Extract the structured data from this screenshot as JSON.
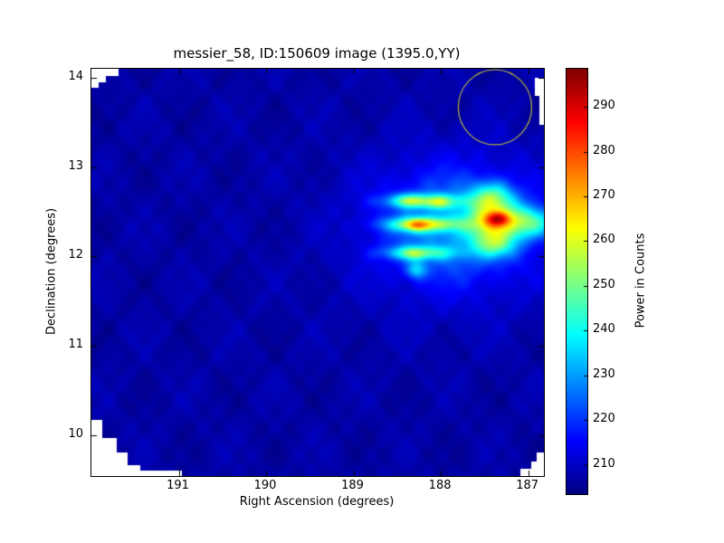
{
  "chart_data": {
    "type": "heatmap",
    "title": "messier_58, ID:150609 image (1395.0,YY)",
    "xlabel": "Right Ascension (degrees)",
    "ylabel": "Declination (degrees)",
    "x_axis": {
      "left_value": 192.0,
      "right_value": 186.82,
      "ticks": [
        191,
        190,
        189,
        188,
        187
      ],
      "inverted": true
    },
    "y_axis": {
      "top_value": 14.1,
      "bottom_value": 9.545,
      "ticks": [
        14,
        13,
        12,
        11,
        10
      ]
    },
    "colorbar": {
      "label": "Power in Counts",
      "ticks": [
        290,
        280,
        270,
        260,
        250,
        240,
        230,
        220,
        210
      ],
      "vmin": 203.5,
      "vmax": 298.5,
      "colormap": "jet"
    },
    "background_value": 207,
    "noise_amplitude": 2.4,
    "features": [
      {
        "name": "core",
        "ra": 187.35,
        "dec": 12.42,
        "sra": 0.1,
        "sdec": 0.055,
        "amp": 30
      },
      {
        "name": "core-halo",
        "ra": 187.38,
        "dec": 12.4,
        "sra": 0.22,
        "sdec": 0.18,
        "amp": 35
      },
      {
        "name": "blob-upper-lobe",
        "ra": 187.42,
        "dec": 12.68,
        "sra": 0.16,
        "sdec": 0.11,
        "amp": 22
      },
      {
        "name": "blob-lower-lobe",
        "ra": 187.38,
        "dec": 12.12,
        "sra": 0.16,
        "sdec": 0.1,
        "amp": 20
      },
      {
        "name": "east-edge-arm",
        "ra": 186.95,
        "dec": 12.38,
        "sra": 0.2,
        "sdec": 0.12,
        "amp": 30
      },
      {
        "name": "finger-top",
        "ra": 188.2,
        "dec": 12.62,
        "sra": 0.3,
        "sdec": 0.055,
        "amp": 30
      },
      {
        "name": "finger-top-knot",
        "ra": 188.38,
        "dec": 12.63,
        "sra": 0.09,
        "sdec": 0.05,
        "amp": 12
      },
      {
        "name": "finger-top-knot2",
        "ra": 188.02,
        "dec": 12.6,
        "sra": 0.08,
        "sdec": 0.05,
        "amp": 10
      },
      {
        "name": "finger-mid",
        "ra": 188.2,
        "dec": 12.36,
        "sra": 0.3,
        "sdec": 0.055,
        "amp": 34
      },
      {
        "name": "finger-mid-knot",
        "ra": 188.28,
        "dec": 12.35,
        "sra": 0.1,
        "sdec": 0.05,
        "amp": 18
      },
      {
        "name": "finger-low",
        "ra": 188.25,
        "dec": 12.04,
        "sra": 0.28,
        "sdec": 0.055,
        "amp": 26
      },
      {
        "name": "finger-low-knot",
        "ra": 188.33,
        "dec": 12.03,
        "sra": 0.09,
        "sdec": 0.05,
        "amp": 10
      },
      {
        "name": "south-spur",
        "ra": 188.28,
        "dec": 11.85,
        "sra": 0.08,
        "sdec": 0.07,
        "amp": 20
      },
      {
        "name": "inner-halo",
        "ra": 187.85,
        "dec": 12.35,
        "sra": 0.55,
        "sdec": 0.4,
        "amp": 16
      },
      {
        "name": "outer-glow",
        "ra": 187.8,
        "dec": 12.3,
        "sra": 0.85,
        "sdec": 0.65,
        "amp": 8
      }
    ],
    "circle_marker": {
      "ra": 187.38,
      "dec": 13.67,
      "radius_deg": 0.42,
      "color": "#b4b23c"
    },
    "footprint_note": "field footprint is a square with white clipped stair-step corners (top-left, bottom-left, bottom-right) and a small notch on the upper right edge"
  }
}
